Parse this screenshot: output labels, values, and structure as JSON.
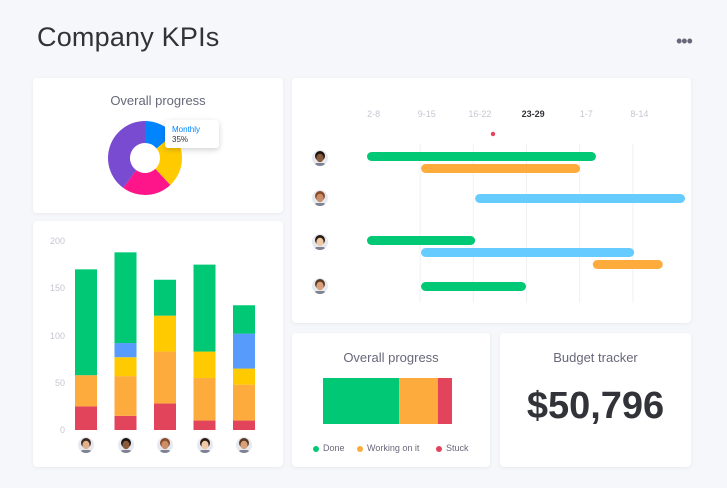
{
  "page": {
    "title": "Company KPIs"
  },
  "menu": {
    "more_label": "•••"
  },
  "colors": {
    "done": "#00c875",
    "working": "#fdab3d",
    "stuck": "#e2445c",
    "blue": "#579bfc",
    "yellow": "#ffcb00",
    "light_blue": "#66ccff",
    "purple": "#784bd1",
    "pink": "#ff158a"
  },
  "overall_progress_donut": {
    "title": "Overall progress",
    "tooltip": {
      "label": "Monthly",
      "value": "35%"
    },
    "chart_data": {
      "type": "pie",
      "slices": [
        {
          "color": "#0085ff",
          "value": 14
        },
        {
          "color": "#ffcb00",
          "value": 24
        },
        {
          "color": "#ff158a",
          "value": 22
        },
        {
          "color": "#784bd1",
          "value": 40
        }
      ]
    }
  },
  "stacked_bar": {
    "chart_data": {
      "type": "bar",
      "ylim": [
        0,
        200
      ],
      "yticks": [
        "200",
        "150",
        "100",
        "50",
        "0"
      ],
      "stacks": [
        {
          "segments": [
            {
              "color": "#e2445c",
              "value": 25
            },
            {
              "color": "#fdab3d",
              "value": 33
            },
            {
              "color": "#00c875",
              "value": 112
            }
          ]
        },
        {
          "segments": [
            {
              "color": "#e2445c",
              "value": 15
            },
            {
              "color": "#fdab3d",
              "value": 42
            },
            {
              "color": "#ffcb00",
              "value": 20
            },
            {
              "color": "#579bfc",
              "value": 15
            },
            {
              "color": "#00c875",
              "value": 96
            }
          ]
        },
        {
          "segments": [
            {
              "color": "#e2445c",
              "value": 28
            },
            {
              "color": "#fdab3d",
              "value": 55
            },
            {
              "color": "#ffcb00",
              "value": 38
            },
            {
              "color": "#00c875",
              "value": 38
            }
          ]
        },
        {
          "segments": [
            {
              "color": "#e2445c",
              "value": 10
            },
            {
              "color": "#fdab3d",
              "value": 45
            },
            {
              "color": "#ffcb00",
              "value": 28
            },
            {
              "color": "#00c875",
              "value": 92
            }
          ]
        },
        {
          "segments": [
            {
              "color": "#e2445c",
              "value": 10
            },
            {
              "color": "#fdab3d",
              "value": 38
            },
            {
              "color": "#ffcb00",
              "value": 17
            },
            {
              "color": "#579bfc",
              "value": 37
            },
            {
              "color": "#00c875",
              "value": 30
            }
          ]
        }
      ]
    }
  },
  "timeline": {
    "weeks": [
      "2-8",
      "9-15",
      "16-22",
      "23-29",
      "1-7",
      "8-14"
    ],
    "active_week": "23-29",
    "chart_data": {
      "type": "bar",
      "rows": [
        {
          "bars": [
            {
              "color": "#00c875",
              "start": 0.0,
              "end": 0.72
            },
            {
              "color": "#fdab3d",
              "start": 0.17,
              "end": 0.67
            }
          ]
        },
        {
          "bars": [
            {
              "color": "#66ccff",
              "start": 0.34,
              "end": 1.0
            }
          ]
        },
        {
          "bars": [
            {
              "color": "#00c875",
              "start": 0.0,
              "end": 0.34
            },
            {
              "color": "#66ccff",
              "start": 0.17,
              "end": 0.84
            },
            {
              "color": "#fdab3d",
              "start": 0.71,
              "end": 0.93
            }
          ]
        },
        {
          "bars": [
            {
              "color": "#00c875",
              "start": 0.17,
              "end": 0.5
            }
          ]
        }
      ]
    }
  },
  "overall_progress_bar": {
    "title": "Overall progress",
    "chart_data": {
      "type": "bar",
      "segments": [
        {
          "name": "Done",
          "color": "#00c875",
          "value": 59
        },
        {
          "name": "Working on it",
          "color": "#fdab3d",
          "value": 30
        },
        {
          "name": "Stuck",
          "color": "#e2445c",
          "value": 11
        }
      ]
    },
    "legend": [
      "Done",
      "Working on it",
      "Stuck"
    ]
  },
  "budget": {
    "title": "Budget tracker",
    "value": "$50,796"
  }
}
